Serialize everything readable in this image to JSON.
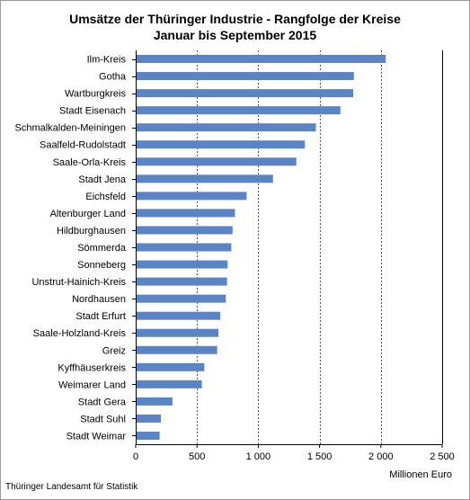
{
  "chart_data": {
    "type": "bar",
    "orientation": "horizontal",
    "title": "Umsätze der Thüringer Industrie - Rangfolge der Kreise",
    "subtitle": "Januar bis September 2015",
    "xlabel": "Millionen Euro",
    "ylabel": "",
    "xlim": [
      0,
      2500
    ],
    "xticks": [
      0,
      500,
      1000,
      1500,
      2000,
      2500
    ],
    "xtick_labels": [
      "0",
      "500",
      "1 000",
      "1 500",
      "2 000",
      "2 500"
    ],
    "grid": "vertical dashed",
    "bar_color": "#5b84c4",
    "categories": [
      "Ilm-Kreis",
      "Gotha",
      "Wartburgkreis",
      "Stadt Eisenach",
      "Schmalkalden-Meiningen",
      "Saalfeld-Rudolstadt",
      "Saale-Orla-Kreis",
      "Stadt Jena",
      "Eichsfeld",
      "Altenburger Land",
      "Hildburghausen",
      "Sömmerda",
      "Sonneberg",
      "Unstrut-Hainich-Kreis",
      "Nordhausen",
      "Stadt Erfurt",
      "Saale-Holzland-Kreis",
      "Greiz",
      "Kyffhäuserkreis",
      "Weimarer Land",
      "Stadt Gera",
      "Stadt Suhl",
      "Stadt Weimar"
    ],
    "values": [
      2040,
      1780,
      1775,
      1670,
      1470,
      1380,
      1310,
      1120,
      905,
      810,
      790,
      780,
      750,
      745,
      735,
      690,
      675,
      665,
      560,
      540,
      300,
      205,
      195
    ]
  },
  "footer": {
    "source": "Thüringer Landesamt für Statistik"
  }
}
